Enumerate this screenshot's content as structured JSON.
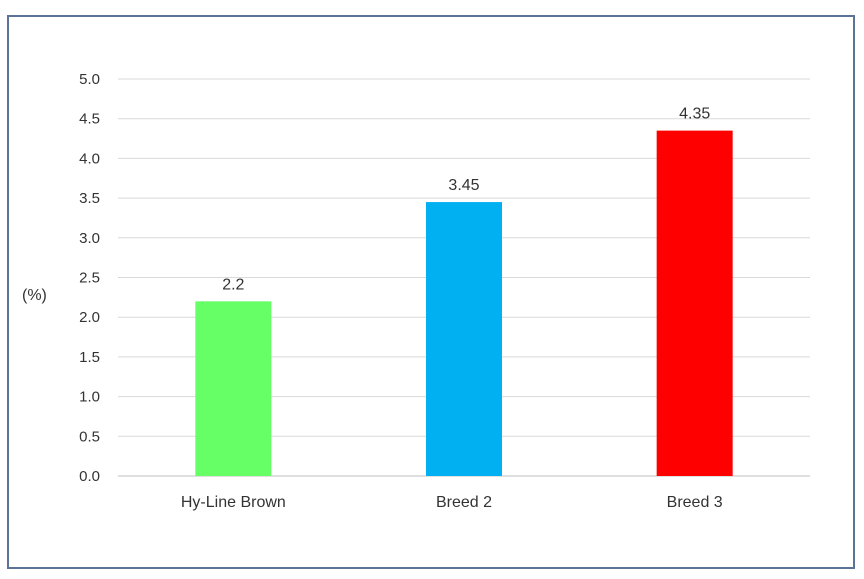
{
  "chart_data": {
    "type": "bar",
    "categories": [
      "Hy-Line Brown",
      "Breed 2",
      "Breed 3"
    ],
    "values": [
      2.2,
      3.45,
      4.35
    ],
    "value_labels": [
      "2.2",
      "3.45",
      "4.35"
    ],
    "bar_colors": [
      "#66ff66",
      "#00b0f0",
      "#ff0000"
    ],
    "title": "",
    "xlabel": "",
    "ylabel": "(%)",
    "ylim": [
      0,
      5.0
    ],
    "yticks": [
      "0.0",
      "0.5",
      "1.0",
      "1.5",
      "2.0",
      "2.5",
      "3.0",
      "3.5",
      "4.0",
      "4.5",
      "5.0"
    ],
    "grid": true,
    "legend": "none"
  }
}
